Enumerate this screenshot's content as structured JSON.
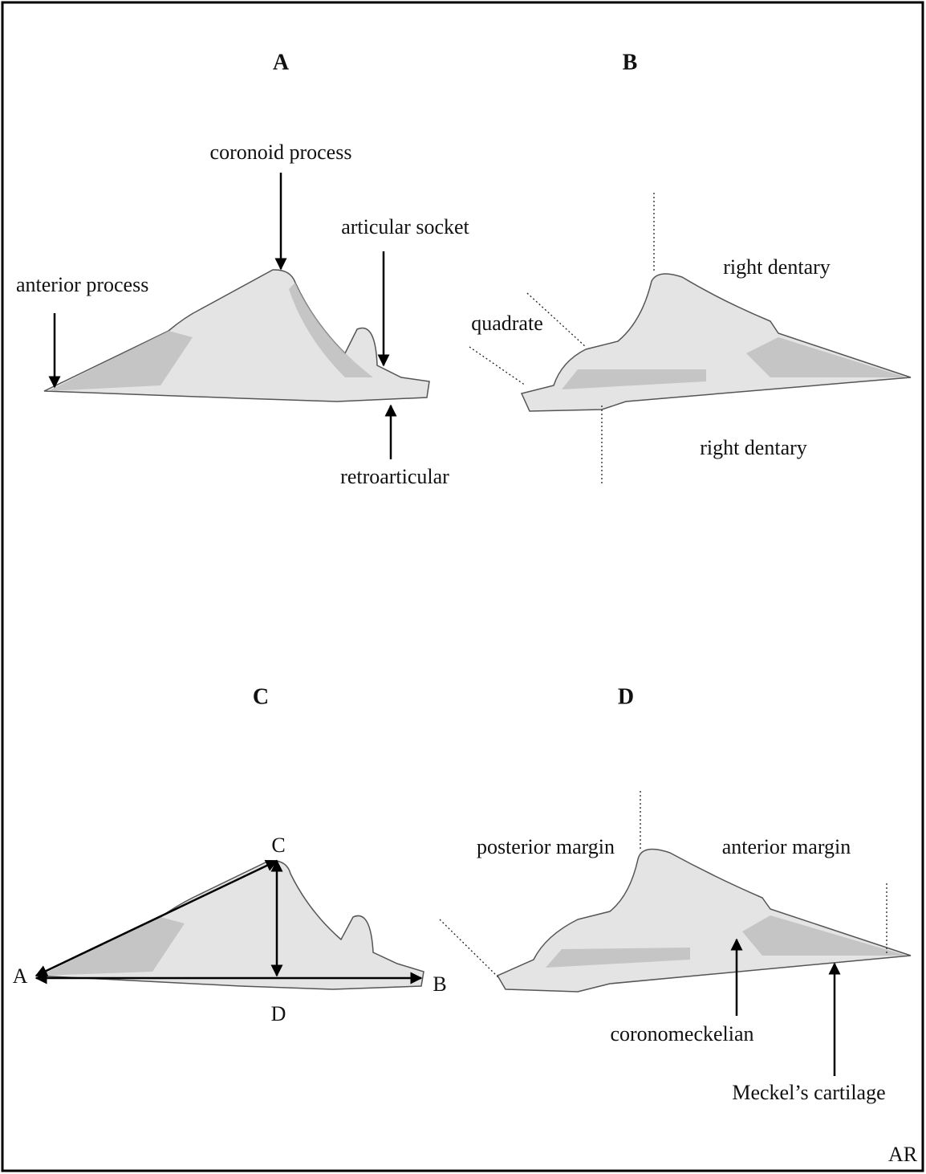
{
  "panels": [
    {
      "letter": "A",
      "labels": [
        "coronoid process",
        "articular socket",
        "anterior process",
        "retroarticular"
      ]
    },
    {
      "letter": "B",
      "labels": [
        "right dentary",
        "quadrate",
        "right dentary"
      ]
    },
    {
      "letter": "C",
      "points": [
        "C",
        "A",
        "B",
        "D"
      ]
    },
    {
      "letter": "D",
      "labels": [
        "posterior margin",
        "anterior margin",
        "coronomeckelian",
        "Meckel’s cartilage"
      ]
    }
  ],
  "signature": "AR"
}
